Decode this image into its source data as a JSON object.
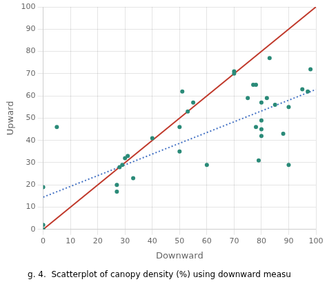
{
  "chart_data": {
    "type": "scatter",
    "xlabel": "Downward",
    "ylabel": "Upward",
    "caption": "g. 4.  Scatterplot of canopy density (%) using downward measu",
    "xlim": [
      0,
      100
    ],
    "ylim": [
      0,
      100
    ],
    "xticks": [
      0,
      10,
      20,
      30,
      40,
      50,
      60,
      70,
      80,
      90,
      100
    ],
    "yticks": [
      0,
      10,
      20,
      30,
      40,
      50,
      60,
      70,
      80,
      90,
      100
    ],
    "grid": true,
    "series": [
      {
        "type": "scatter",
        "marker": "circle",
        "color": "#2a8a78",
        "x": [
          0,
          0,
          0,
          5,
          27,
          27,
          28,
          29,
          30,
          31,
          33,
          40,
          50,
          50,
          51,
          53,
          55,
          60,
          70,
          70,
          75,
          77,
          78,
          78,
          79,
          80,
          80,
          80,
          80,
          82,
          83,
          85,
          88,
          90,
          90,
          95,
          97,
          98
        ],
        "values": [
          0,
          2,
          19,
          46,
          20,
          17,
          28,
          29,
          32,
          33,
          23,
          41,
          46,
          35,
          62,
          53,
          57,
          29,
          71,
          70,
          59,
          65,
          65,
          46,
          31,
          49,
          57,
          45,
          42,
          59,
          77,
          56,
          43,
          29,
          55,
          63,
          62,
          72
        ]
      },
      {
        "type": "line",
        "line_style": "solid",
        "color": "#c0392b",
        "x": [
          0,
          100
        ],
        "values": [
          0,
          100
        ]
      },
      {
        "type": "line",
        "line_style": "dotted",
        "color": "#4472c4",
        "x": [
          0,
          100
        ],
        "values": [
          14.5,
          62.9
        ]
      }
    ]
  }
}
